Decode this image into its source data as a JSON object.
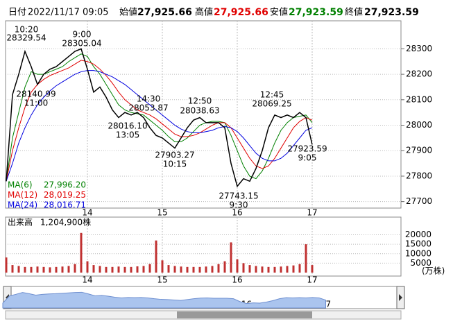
{
  "header": {
    "date_label": "日付",
    "date": "2022/11/17 09:05",
    "open_label": "始値",
    "open": "27,925.66",
    "high_label": "高値",
    "high": "27,925.66",
    "low_label": "安値",
    "low": "27,923.59",
    "close_label": "終値",
    "close": "27,923.59"
  },
  "chart_data": [
    {
      "type": "line",
      "categories": [
        null,
        null,
        null,
        null,
        null,
        null,
        null,
        null,
        null,
        null,
        null,
        null,
        null,
        "14",
        null,
        null,
        null,
        null,
        null,
        null,
        null,
        null,
        null,
        null,
        null,
        "15",
        null,
        null,
        null,
        null,
        null,
        null,
        null,
        null,
        null,
        null,
        null,
        "16",
        null,
        null,
        null,
        null,
        null,
        null,
        null,
        null,
        null,
        null,
        null,
        "17"
      ],
      "values": [
        27780,
        28120,
        28200,
        28290,
        28230,
        28160,
        28200,
        28220,
        28230,
        28250,
        28270,
        28290,
        28300,
        28220,
        28130,
        28150,
        28110,
        28060,
        28030,
        28050,
        28040,
        28050,
        28030,
        27990,
        27960,
        27950,
        27930,
        27910,
        27950,
        27990,
        28020,
        28030,
        28010,
        28010,
        28010,
        27990,
        27850,
        27760,
        27790,
        27780,
        27830,
        27900,
        27990,
        28040,
        28030,
        28040,
        28030,
        28050,
        28030,
        27924
      ],
      "color": "#000000",
      "series": [
        {
          "name": "MA(6)",
          "latest": "27,996.20",
          "color": "#008000",
          "values": [
            27780,
            27950,
            28050,
            28150,
            28210,
            28200,
            28200,
            28210,
            28220,
            28230,
            28250,
            28265,
            28280,
            28270,
            28230,
            28200,
            28160,
            28120,
            28080,
            28060,
            28050,
            28045,
            28040,
            28020,
            28000,
            27980,
            27955,
            27935,
            27935,
            27950,
            27975,
            28000,
            28010,
            28015,
            28015,
            28010,
            27960,
            27900,
            27840,
            27800,
            27790,
            27820,
            27870,
            27930,
            27980,
            28010,
            28030,
            28035,
            28040,
            28010
          ]
        },
        {
          "name": "MA(12)",
          "latest": "28,019.25",
          "color": "#e00000",
          "values": [
            27780,
            27900,
            27990,
            28070,
            28130,
            28160,
            28180,
            28195,
            28205,
            28215,
            28225,
            28240,
            28255,
            28250,
            28240,
            28220,
            28195,
            28165,
            28130,
            28100,
            28080,
            28060,
            28050,
            28040,
            28025,
            28005,
            27985,
            27965,
            27955,
            27955,
            27960,
            27970,
            27985,
            28000,
            28010,
            28010,
            27990,
            27950,
            27910,
            27870,
            27840,
            27830,
            27840,
            27870,
            27910,
            27950,
            27990,
            28015,
            28030,
            28020
          ]
        },
        {
          "name": "MA(24)",
          "latest": "28,016.71",
          "color": "#0000e0",
          "values": [
            27780,
            27850,
            27930,
            27990,
            28040,
            28080,
            28110,
            28135,
            28155,
            28170,
            28185,
            28200,
            28210,
            28215,
            28215,
            28210,
            28200,
            28190,
            28175,
            28160,
            28140,
            28120,
            28100,
            28080,
            28060,
            28040,
            28020,
            28000,
            27985,
            27975,
            27970,
            27970,
            27975,
            27980,
            27990,
            27995,
            27990,
            27975,
            27950,
            27920,
            27890,
            27870,
            27860,
            27860,
            27870,
            27890,
            27920,
            27950,
            27980,
            27990
          ]
        }
      ],
      "ylim": [
        27680,
        28410
      ],
      "yticks": [
        27700,
        27800,
        27900,
        28000,
        28100,
        28200,
        28300
      ],
      "grid": true,
      "annotations": [
        {
          "time": "10:20",
          "price": "28329.54"
        },
        {
          "time": "9:00",
          "price": "28305.04"
        },
        {
          "time": "11:00",
          "price": "28140.99"
        },
        {
          "time": "14:30",
          "price": "28053.87"
        },
        {
          "time": "12:50",
          "price": "28038.63"
        },
        {
          "time": "13:05",
          "price": "28016.10"
        },
        {
          "time": "10:15",
          "price": "27903.27"
        },
        {
          "time": "9:30",
          "price": "27743.15"
        },
        {
          "time": "12:45",
          "price": "28069.25"
        },
        {
          "time": "9:05",
          "price": "27923.59"
        }
      ]
    },
    {
      "type": "bar",
      "title": "出来高",
      "subtitle": "1,204,900株",
      "unit": "(万株)",
      "color": "#c03030",
      "values": [
        8000,
        4000,
        3500,
        3000,
        3000,
        3200,
        3000,
        2800,
        3000,
        3200,
        3500,
        4500,
        21000,
        6000,
        4000,
        3500,
        3000,
        3000,
        3200,
        3000,
        3000,
        3300,
        3500,
        4500,
        17000,
        6500,
        4000,
        3500,
        3200,
        3000,
        3000,
        3000,
        3200,
        3500,
        4500,
        6000,
        16000,
        7000,
        5000,
        4000,
        3500,
        3200,
        3000,
        3000,
        3200,
        3500,
        3800,
        4500,
        15000,
        4000
      ],
      "ylim": [
        0,
        29000
      ],
      "yticks": [
        5000,
        10000,
        15000,
        20000
      ],
      "grid": true
    }
  ]
}
